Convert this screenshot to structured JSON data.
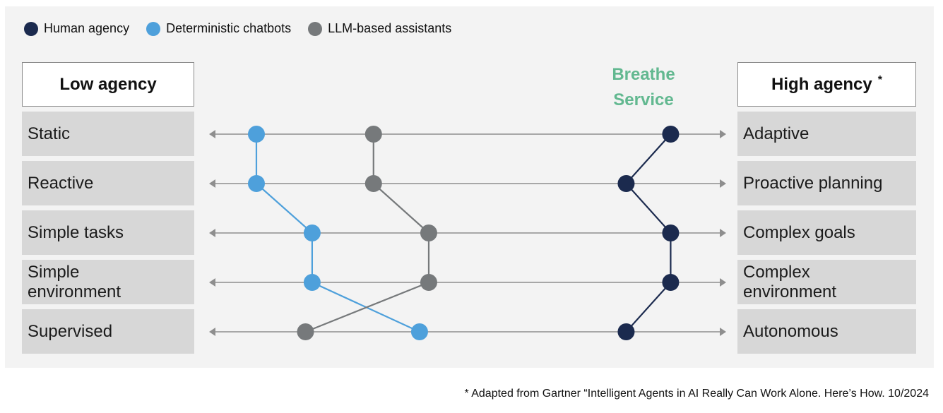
{
  "legend": [
    {
      "label": "Human agency",
      "color": "#1b2a4e"
    },
    {
      "label": "Deterministic chatbots",
      "color": "#4ea0db"
    },
    {
      "label": "LLM-based assistants",
      "color": "#76797b"
    }
  ],
  "low_header": "Low agency",
  "high_header": "High agency",
  "high_marker": "*",
  "brand": {
    "line1": "Breathe",
    "line2": "Service",
    "color": "#62b890"
  },
  "dimensions": [
    {
      "low": "Static",
      "high": "Adaptive"
    },
    {
      "low": "Reactive",
      "high": "Proactive planning"
    },
    {
      "low": "Simple tasks",
      "high": "Complex goals"
    },
    {
      "low": "Simple environment",
      "high": "Complex environment"
    },
    {
      "low": "Supervised",
      "high": "Autonomous"
    }
  ],
  "series": [
    {
      "name": "Deterministic chatbots",
      "color": "#4ea0db",
      "positions": [
        0.087,
        0.087,
        0.196,
        0.196,
        0.406
      ]
    },
    {
      "name": "LLM-based assistants",
      "color": "#76797b",
      "positions": [
        0.316,
        0.316,
        0.424,
        0.424,
        0.183
      ]
    },
    {
      "name": "Human agency",
      "color": "#1b2a4e",
      "positions": [
        0.897,
        0.81,
        0.897,
        0.897,
        0.81
      ]
    }
  ],
  "footnote": "* Adapted from Gartner “Intelligent Agents in AI Really Can Work Alone. Here’s How. 10/2024"
}
